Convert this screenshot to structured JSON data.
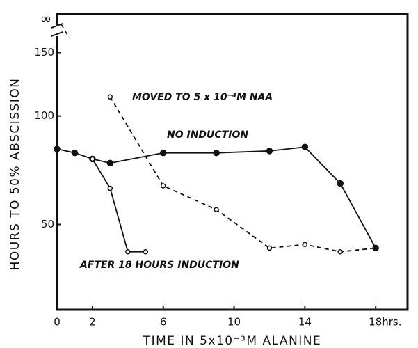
{
  "chart_data": {
    "type": "line",
    "xlabel": "TIME IN 5x10⁻³M ALANINE",
    "ylabel": "HOURS TO 50% ABSCISSION",
    "top_label": "∞",
    "xlim": [
      0,
      19.8
    ],
    "ylim": [
      29,
      192
    ],
    "log_y": true,
    "xticks": [
      0,
      2,
      6,
      10,
      14,
      {
        "value": 18,
        "label": "18hrs."
      }
    ],
    "yticks": [
      50,
      100,
      150
    ],
    "series": [
      {
        "name": "MOVED TO 5 x 10⁻⁴M NAA",
        "color": "#111",
        "style": "dashed",
        "marker": "open",
        "x": [
          3,
          6,
          9,
          12,
          14,
          16,
          18
        ],
        "values": [
          113,
          64,
          55,
          43,
          44,
          42,
          43
        ]
      },
      {
        "name": "NO INDUCTION",
        "color": "#111",
        "style": "solid",
        "marker": "filled",
        "x": [
          0,
          1,
          2,
          3,
          6,
          9,
          12,
          14,
          16,
          18
        ],
        "values": [
          81,
          79,
          76,
          74,
          79,
          79,
          80,
          82,
          65,
          43
        ]
      },
      {
        "name": "AFTER 18 HOURS INDUCTION",
        "color": "#111",
        "style": "solid",
        "marker": "open",
        "x": [
          2,
          3,
          4,
          5
        ],
        "values": [
          76,
          63,
          42,
          42
        ]
      }
    ]
  }
}
